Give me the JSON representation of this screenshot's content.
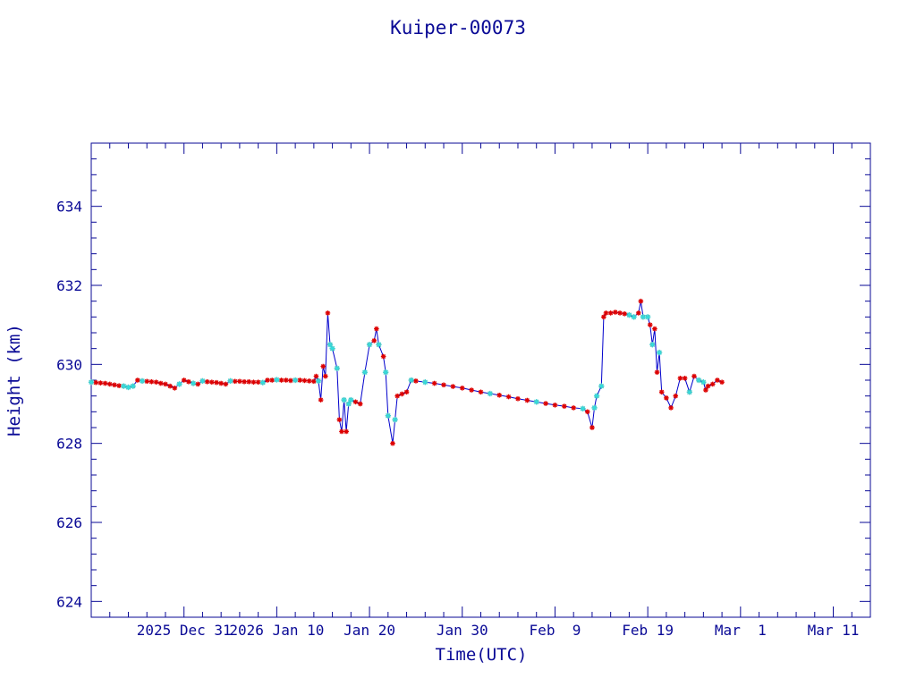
{
  "chart_data": {
    "type": "line",
    "title": "Kuiper-00073",
    "xlabel": "Time(UTC)",
    "ylabel": "Height (km)",
    "x_ticks": [
      {
        "label": "2025 Dec 31",
        "date": "2025-12-31"
      },
      {
        "label": "2026 Jan 10",
        "date": "2026-01-10"
      },
      {
        "label": "Jan 20",
        "date": "2026-01-20"
      },
      {
        "label": "Jan 30",
        "date": "2026-01-30"
      },
      {
        "label": "Feb  9",
        "date": "2026-02-09"
      },
      {
        "label": "Feb 19",
        "date": "2026-02-19"
      },
      {
        "label": "Mar  1",
        "date": "2026-03-01"
      },
      {
        "label": "Mar 11",
        "date": "2026-03-11"
      }
    ],
    "y_ticks": [
      "624",
      "626",
      "628",
      "630",
      "632",
      "634"
    ],
    "xlim": [
      "2025-12-21T00:00",
      "2026-03-15T00:00"
    ],
    "ylim": [
      623.6,
      635.6
    ],
    "grid": false,
    "colors": {
      "axis": "#0a0a96",
      "line": "#0000cc",
      "marker_primary": "#dd0000",
      "marker_secondary": "#33dddd"
    },
    "series": [
      {
        "points": [
          [
            "2025-12-21T00:00",
            629.55
          ],
          [
            "2025-12-21T12:00",
            629.54
          ],
          [
            "2025-12-22T00:00",
            629.53
          ],
          [
            "2025-12-22T12:00",
            629.52
          ],
          [
            "2025-12-23T00:00",
            629.5
          ],
          [
            "2025-12-23T12:00",
            629.48
          ],
          [
            "2025-12-24T00:00",
            629.46
          ],
          [
            "2025-12-24T12:00",
            629.45
          ],
          [
            "2025-12-25T00:00",
            629.42
          ],
          [
            "2025-12-25T12:00",
            629.45
          ],
          [
            "2025-12-26T00:00",
            629.6
          ],
          [
            "2025-12-26T12:00",
            629.58
          ],
          [
            "2025-12-27T00:00",
            629.57
          ],
          [
            "2025-12-27T12:00",
            629.56
          ],
          [
            "2025-12-28T00:00",
            629.55
          ],
          [
            "2025-12-28T12:00",
            629.52
          ],
          [
            "2025-12-29T00:00",
            629.5
          ],
          [
            "2025-12-29T12:00",
            629.45
          ],
          [
            "2025-12-30T00:00",
            629.4
          ],
          [
            "2025-12-30T12:00",
            629.5
          ],
          [
            "2025-12-31T00:00",
            629.6
          ],
          [
            "2025-12-31T12:00",
            629.56
          ],
          [
            "2026-01-01T00:00",
            629.52
          ],
          [
            "2026-01-01T12:00",
            629.5
          ],
          [
            "2026-01-02T00:00",
            629.58
          ],
          [
            "2026-01-02T12:00",
            629.56
          ],
          [
            "2026-01-03T00:00",
            629.55
          ],
          [
            "2026-01-03T12:00",
            629.54
          ],
          [
            "2026-01-04T00:00",
            629.52
          ],
          [
            "2026-01-04T12:00",
            629.5
          ],
          [
            "2026-01-05T00:00",
            629.58
          ],
          [
            "2026-01-05T12:00",
            629.57
          ],
          [
            "2026-01-06T00:00",
            629.57
          ],
          [
            "2026-01-06T12:00",
            629.56
          ],
          [
            "2026-01-07T00:00",
            629.56
          ],
          [
            "2026-01-07T12:00",
            629.55
          ],
          [
            "2026-01-08T00:00",
            629.55
          ],
          [
            "2026-01-08T12:00",
            629.54
          ],
          [
            "2026-01-09T00:00",
            629.6
          ],
          [
            "2026-01-09T12:00",
            629.6
          ],
          [
            "2026-01-10T00:00",
            629.61
          ],
          [
            "2026-01-10T12:00",
            629.6
          ],
          [
            "2026-01-11T00:00",
            629.6
          ],
          [
            "2026-01-11T12:00",
            629.59
          ],
          [
            "2026-01-12T00:00",
            629.6
          ],
          [
            "2026-01-12T12:00",
            629.6
          ],
          [
            "2026-01-13T00:00",
            629.59
          ],
          [
            "2026-01-13T12:00",
            629.58
          ],
          [
            "2026-01-14T00:00",
            629.57
          ],
          [
            "2026-01-14T06:00",
            629.7
          ],
          [
            "2026-01-14T12:00",
            629.58
          ],
          [
            "2026-01-14T18:00",
            629.1
          ],
          [
            "2026-01-15T00:00",
            629.95
          ],
          [
            "2026-01-15T06:00",
            629.7
          ],
          [
            "2026-01-15T12:00",
            631.3
          ],
          [
            "2026-01-15T18:00",
            630.5
          ],
          [
            "2026-01-16T00:00",
            630.4
          ],
          [
            "2026-01-16T12:00",
            629.9
          ],
          [
            "2026-01-16T18:00",
            628.6
          ],
          [
            "2026-01-17T00:00",
            628.3
          ],
          [
            "2026-01-17T06:00",
            629.1
          ],
          [
            "2026-01-17T12:00",
            628.3
          ],
          [
            "2026-01-17T18:00",
            629.0
          ],
          [
            "2026-01-18T00:00",
            629.1
          ],
          [
            "2026-01-18T12:00",
            629.05
          ],
          [
            "2026-01-19T00:00",
            629.0
          ],
          [
            "2026-01-19T12:00",
            629.8
          ],
          [
            "2026-01-20T00:00",
            630.5
          ],
          [
            "2026-01-20T12:00",
            630.6
          ],
          [
            "2026-01-20T18:00",
            630.9
          ],
          [
            "2026-01-21T00:00",
            630.5
          ],
          [
            "2026-01-21T12:00",
            630.2
          ],
          [
            "2026-01-21T18:00",
            629.8
          ],
          [
            "2026-01-22T00:00",
            628.7
          ],
          [
            "2026-01-22T12:00",
            628.0
          ],
          [
            "2026-01-22T18:00",
            628.6
          ],
          [
            "2026-01-23T00:00",
            629.2
          ],
          [
            "2026-01-23T12:00",
            629.25
          ],
          [
            "2026-01-24T00:00",
            629.3
          ],
          [
            "2026-01-24T12:00",
            629.6
          ],
          [
            "2026-01-25T00:00",
            629.58
          ],
          [
            "2026-01-26T00:00",
            629.55
          ],
          [
            "2026-01-27T00:00",
            629.52
          ],
          [
            "2026-01-28T00:00",
            629.48
          ],
          [
            "2026-01-29T00:00",
            629.44
          ],
          [
            "2026-01-30T00:00",
            629.4
          ],
          [
            "2026-01-31T00:00",
            629.35
          ],
          [
            "2026-02-01T00:00",
            629.3
          ],
          [
            "2026-02-02T00:00",
            629.26
          ],
          [
            "2026-02-03T00:00",
            629.22
          ],
          [
            "2026-02-04T00:00",
            629.18
          ],
          [
            "2026-02-05T00:00",
            629.13
          ],
          [
            "2026-02-06T00:00",
            629.09
          ],
          [
            "2026-02-07T00:00",
            629.05
          ],
          [
            "2026-02-08T00:00",
            629.01
          ],
          [
            "2026-02-09T00:00",
            628.97
          ],
          [
            "2026-02-10T00:00",
            628.94
          ],
          [
            "2026-02-11T00:00",
            628.9
          ],
          [
            "2026-02-12T00:00",
            628.88
          ],
          [
            "2026-02-12T12:00",
            628.8
          ],
          [
            "2026-02-13T00:00",
            628.4
          ],
          [
            "2026-02-13T06:00",
            628.9
          ],
          [
            "2026-02-13T12:00",
            629.2
          ],
          [
            "2026-02-14T00:00",
            629.45
          ],
          [
            "2026-02-14T06:00",
            631.2
          ],
          [
            "2026-02-14T12:00",
            631.3
          ],
          [
            "2026-02-15T00:00",
            631.3
          ],
          [
            "2026-02-15T12:00",
            631.32
          ],
          [
            "2026-02-16T00:00",
            631.3
          ],
          [
            "2026-02-16T12:00",
            631.28
          ],
          [
            "2026-02-17T00:00",
            631.25
          ],
          [
            "2026-02-17T12:00",
            631.2
          ],
          [
            "2026-02-18T00:00",
            631.3
          ],
          [
            "2026-02-18T06:00",
            631.6
          ],
          [
            "2026-02-18T12:00",
            631.2
          ],
          [
            "2026-02-19T00:00",
            631.2
          ],
          [
            "2026-02-19T06:00",
            631.0
          ],
          [
            "2026-02-19T12:00",
            630.5
          ],
          [
            "2026-02-19T18:00",
            630.9
          ],
          [
            "2026-02-20T00:00",
            629.8
          ],
          [
            "2026-02-20T06:00",
            630.3
          ],
          [
            "2026-02-20T12:00",
            629.3
          ],
          [
            "2026-02-21T00:00",
            629.15
          ],
          [
            "2026-02-21T12:00",
            628.9
          ],
          [
            "2026-02-22T00:00",
            629.2
          ],
          [
            "2026-02-22T12:00",
            629.65
          ],
          [
            "2026-02-23T00:00",
            629.65
          ],
          [
            "2026-02-23T12:00",
            629.3
          ],
          [
            "2026-02-24T00:00",
            629.7
          ],
          [
            "2026-02-24T12:00",
            629.6
          ],
          [
            "2026-02-25T00:00",
            629.55
          ],
          [
            "2026-02-25T06:00",
            629.35
          ],
          [
            "2026-02-25T12:00",
            629.45
          ],
          [
            "2026-02-26T00:00",
            629.5
          ],
          [
            "2026-02-26T12:00",
            629.6
          ],
          [
            "2026-02-27T00:00",
            629.55
          ]
        ],
        "secondary_marker_points": [
          [
            "2025-12-21T00:00",
            629.55
          ],
          [
            "2025-12-24T12:00",
            629.45
          ],
          [
            "2025-12-25T00:00",
            629.42
          ],
          [
            "2025-12-25T12:00",
            629.45
          ],
          [
            "2025-12-26T12:00",
            629.58
          ],
          [
            "2025-12-30T12:00",
            629.5
          ],
          [
            "2026-01-01T00:00",
            629.52
          ],
          [
            "2026-01-02T00:00",
            629.58
          ],
          [
            "2026-01-05T00:00",
            629.58
          ],
          [
            "2026-01-08T12:00",
            629.54
          ],
          [
            "2026-01-10T00:00",
            629.61
          ],
          [
            "2026-01-12T00:00",
            629.6
          ],
          [
            "2026-01-14T12:00",
            629.58
          ],
          [
            "2026-01-15T18:00",
            630.5
          ],
          [
            "2026-01-16T00:00",
            630.4
          ],
          [
            "2026-01-16T12:00",
            629.9
          ],
          [
            "2026-01-17T06:00",
            629.1
          ],
          [
            "2026-01-17T18:00",
            629.0
          ],
          [
            "2026-01-18T00:00",
            629.1
          ],
          [
            "2026-01-19T12:00",
            629.8
          ],
          [
            "2026-01-20T00:00",
            630.5
          ],
          [
            "2026-01-21T00:00",
            630.5
          ],
          [
            "2026-01-21T18:00",
            629.8
          ],
          [
            "2026-01-22T00:00",
            628.7
          ],
          [
            "2026-01-22T18:00",
            628.6
          ],
          [
            "2026-01-24T12:00",
            629.6
          ],
          [
            "2026-01-26T00:00",
            629.55
          ],
          [
            "2026-02-02T00:00",
            629.26
          ],
          [
            "2026-02-07T00:00",
            629.05
          ],
          [
            "2026-02-12T00:00",
            628.88
          ],
          [
            "2026-02-13T06:00",
            628.9
          ],
          [
            "2026-02-13T12:00",
            629.2
          ],
          [
            "2026-02-14T00:00",
            629.45
          ],
          [
            "2026-02-17T00:00",
            631.25
          ],
          [
            "2026-02-17T12:00",
            631.2
          ],
          [
            "2026-02-18T12:00",
            631.2
          ],
          [
            "2026-02-19T00:00",
            631.2
          ],
          [
            "2026-02-19T12:00",
            630.5
          ],
          [
            "2026-02-20T06:00",
            630.3
          ],
          [
            "2026-02-23T12:00",
            629.3
          ],
          [
            "2026-02-24T12:00",
            629.6
          ],
          [
            "2026-02-25T00:00",
            629.55
          ]
        ]
      }
    ]
  }
}
